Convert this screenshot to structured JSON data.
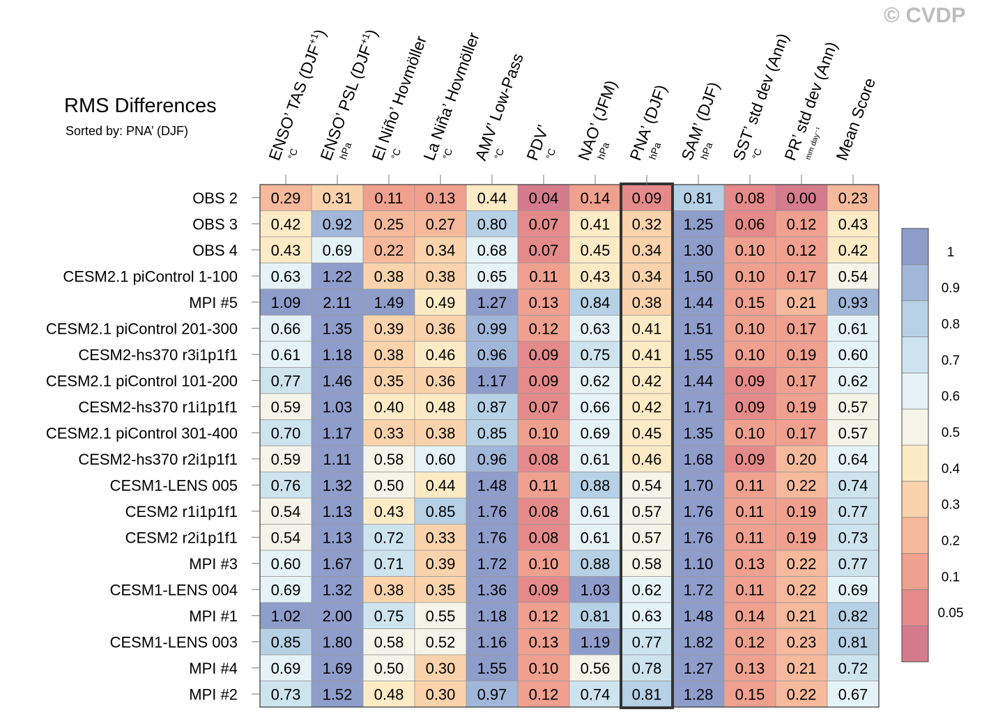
{
  "watermark": "© CVDP",
  "chart_data": {
    "type": "heatmap",
    "title": "RMS Differences",
    "subtitle": "Sorted by: PNA’ (DJF)",
    "highlight_column": "PNA’ (DJF)",
    "columns": [
      {
        "label": "ENSO’ TAS (DJF",
        "sup": "+1",
        "close": ")",
        "unit": "°C"
      },
      {
        "label": "ENSO’ PSL (DJF",
        "sup": "+1",
        "close": ")",
        "unit": "hPa"
      },
      {
        "label": "El Niño’ Hovmöller",
        "sup": "",
        "close": "",
        "unit": "°C"
      },
      {
        "label": "La Niña’ Hovmöller",
        "sup": "",
        "close": "",
        "unit": "°C"
      },
      {
        "label": "AMV’ Low-Pass",
        "sup": "",
        "close": "",
        "unit": "°C"
      },
      {
        "label": "PDV’",
        "sup": "",
        "close": "",
        "unit": "°C"
      },
      {
        "label": "NAO’ (JFM)",
        "sup": "",
        "close": "",
        "unit": "hPa"
      },
      {
        "label": "PNA’ (DJF)",
        "sup": "",
        "close": "",
        "unit": "hPa"
      },
      {
        "label": "SAM’ (DJF)",
        "sup": "",
        "close": "",
        "unit": "hPa"
      },
      {
        "label": "SST’ std dev (Ann)",
        "sup": "",
        "close": "",
        "unit": "°C"
      },
      {
        "label": "PR’ std dev (Ann)",
        "sup": "",
        "close": "",
        "unit": "mm day⁻¹"
      },
      {
        "label": "Mean Score",
        "sup": "",
        "close": "",
        "unit": ""
      }
    ],
    "rows": [
      {
        "name": "OBS 2",
        "values": [
          0.29,
          0.31,
          0.11,
          0.13,
          0.44,
          0.04,
          0.14,
          0.09,
          0.81,
          0.08,
          0.0,
          0.23
        ]
      },
      {
        "name": "OBS 3",
        "values": [
          0.42,
          0.92,
          0.25,
          0.27,
          0.8,
          0.07,
          0.41,
          0.32,
          1.25,
          0.06,
          0.12,
          0.43
        ]
      },
      {
        "name": "OBS 4",
        "values": [
          0.43,
          0.69,
          0.22,
          0.34,
          0.68,
          0.07,
          0.45,
          0.34,
          1.3,
          0.1,
          0.12,
          0.42
        ]
      },
      {
        "name": "CESM2.1 piControl 1-100",
        "values": [
          0.63,
          1.22,
          0.38,
          0.38,
          0.65,
          0.11,
          0.43,
          0.34,
          1.5,
          0.1,
          0.17,
          0.54
        ]
      },
      {
        "name": "MPI #5",
        "values": [
          1.09,
          2.11,
          1.49,
          0.49,
          1.27,
          0.13,
          0.84,
          0.38,
          1.44,
          0.15,
          0.21,
          0.93
        ]
      },
      {
        "name": "CESM2.1 piControl 201-300",
        "values": [
          0.66,
          1.35,
          0.39,
          0.36,
          0.99,
          0.12,
          0.63,
          0.41,
          1.51,
          0.1,
          0.17,
          0.61
        ]
      },
      {
        "name": "CESM2-hs370 r3i1p1f1",
        "values": [
          0.61,
          1.18,
          0.38,
          0.46,
          0.96,
          0.09,
          0.75,
          0.41,
          1.55,
          0.1,
          0.19,
          0.6
        ]
      },
      {
        "name": "CESM2.1 piControl 101-200",
        "values": [
          0.77,
          1.46,
          0.35,
          0.36,
          1.17,
          0.09,
          0.62,
          0.42,
          1.44,
          0.09,
          0.17,
          0.62
        ]
      },
      {
        "name": "CESM2-hs370 r1i1p1f1",
        "values": [
          0.59,
          1.03,
          0.4,
          0.48,
          0.87,
          0.07,
          0.66,
          0.42,
          1.71,
          0.09,
          0.19,
          0.57
        ]
      },
      {
        "name": "CESM2.1 piControl 301-400",
        "values": [
          0.7,
          1.17,
          0.33,
          0.38,
          0.85,
          0.1,
          0.69,
          0.45,
          1.35,
          0.1,
          0.17,
          0.57
        ]
      },
      {
        "name": "CESM2-hs370 r2i1p1f1",
        "values": [
          0.59,
          1.11,
          0.58,
          0.6,
          0.96,
          0.08,
          0.61,
          0.46,
          1.68,
          0.09,
          0.2,
          0.64
        ]
      },
      {
        "name": "CESM1-LENS 005",
        "values": [
          0.76,
          1.32,
          0.5,
          0.44,
          1.48,
          0.11,
          0.88,
          0.54,
          1.7,
          0.11,
          0.22,
          0.74
        ]
      },
      {
        "name": "CESM2 r1i1p1f1",
        "values": [
          0.54,
          1.13,
          0.43,
          0.85,
          1.76,
          0.08,
          0.61,
          0.57,
          1.76,
          0.11,
          0.19,
          0.77
        ]
      },
      {
        "name": "CESM2 r2i1p1f1",
        "values": [
          0.54,
          1.13,
          0.72,
          0.33,
          1.76,
          0.08,
          0.61,
          0.57,
          1.76,
          0.11,
          0.19,
          0.73
        ]
      },
      {
        "name": "MPI #3",
        "values": [
          0.6,
          1.67,
          0.71,
          0.39,
          1.72,
          0.1,
          0.88,
          0.58,
          1.1,
          0.13,
          0.22,
          0.77
        ]
      },
      {
        "name": "CESM1-LENS 004",
        "values": [
          0.69,
          1.32,
          0.38,
          0.35,
          1.36,
          0.09,
          1.03,
          0.62,
          1.72,
          0.11,
          0.22,
          0.69
        ]
      },
      {
        "name": "MPI #1",
        "values": [
          1.02,
          2.0,
          0.75,
          0.55,
          1.18,
          0.12,
          0.81,
          0.63,
          1.48,
          0.14,
          0.21,
          0.82
        ]
      },
      {
        "name": "CESM1-LENS 003",
        "values": [
          0.85,
          1.8,
          0.58,
          0.52,
          1.16,
          0.13,
          1.19,
          0.77,
          1.82,
          0.12,
          0.23,
          0.81
        ]
      },
      {
        "name": "MPI #4",
        "values": [
          0.69,
          1.69,
          0.5,
          0.3,
          1.55,
          0.1,
          0.56,
          0.78,
          1.27,
          0.13,
          0.21,
          0.72
        ]
      },
      {
        "name": "MPI #2",
        "values": [
          0.73,
          1.52,
          0.48,
          0.3,
          0.97,
          0.12,
          0.74,
          0.81,
          1.28,
          0.15,
          0.22,
          0.67
        ]
      }
    ],
    "colorbar": {
      "levels": [
        0.05,
        0.1,
        0.2,
        0.3,
        0.4,
        0.5,
        0.6,
        0.7,
        0.8,
        0.9,
        1
      ],
      "tick_labels": [
        "0.05",
        "0.1",
        "0.2",
        "0.3",
        "0.4",
        "0.5",
        "0.6",
        "0.7",
        "0.8",
        "0.9",
        "1"
      ],
      "colors": [
        "#d47b8e",
        "#e58a8a",
        "#f0a08f",
        "#f6b99c",
        "#fad3ac",
        "#fdebc6",
        "#f5f4e8",
        "#e5f2f6",
        "#cde4ef",
        "#b6d1e6",
        "#a1b7d9",
        "#8f9dcb"
      ]
    }
  }
}
